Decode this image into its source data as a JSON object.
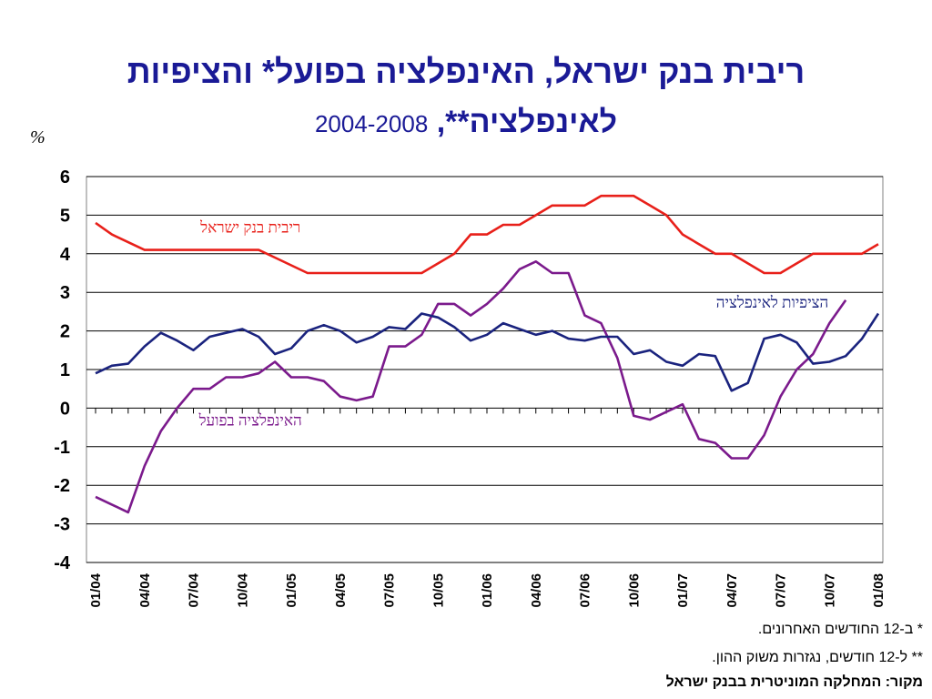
{
  "title": {
    "line1": "ריבית בנק ישראל, האינפלציה בפועל* והציפיות",
    "line2": "לאינפלציה**,",
    "years": "2004-2008"
  },
  "unit_label": "%",
  "notes": {
    "note1": "* ב-12 החודשים האחרונים.",
    "note2": "** ל-12 חודשים, נגזרות משוק ההון.",
    "source": "מקור: המחלקה המוניטרית בבנק ישראל"
  },
  "colors": {
    "rate": "#e8201a",
    "actual": "#7b1a8c",
    "expected": "#1a237e",
    "grid": "#000000"
  },
  "chart_data": {
    "type": "line",
    "ylim": [
      -4,
      6
    ],
    "yticks": [
      6,
      5,
      4,
      3,
      2,
      1,
      0,
      -1,
      -2,
      -3,
      -4
    ],
    "x_tick_labels": [
      "01/04",
      "04/04",
      "07/04",
      "10/04",
      "01/05",
      "04/05",
      "07/05",
      "10/05",
      "01/06",
      "04/06",
      "07/06",
      "10/06",
      "01/07",
      "04/07",
      "07/07",
      "10/07",
      "01/08"
    ],
    "grid": "horizontal",
    "series": [
      {
        "name": "ריבית בנק ישראל",
        "color_key": "rate",
        "values": [
          4.8,
          4.5,
          4.3,
          4.1,
          4.1,
          4.1,
          4.1,
          4.1,
          4.1,
          4.1,
          4.1,
          3.9,
          3.7,
          3.5,
          3.5,
          3.5,
          3.5,
          3.5,
          3.5,
          3.5,
          3.5,
          3.75,
          4.0,
          4.5,
          4.5,
          4.75,
          4.75,
          5.0,
          5.25,
          5.25,
          5.25,
          5.5,
          5.5,
          5.5,
          5.25,
          5.0,
          4.5,
          4.25,
          4.0,
          4.0,
          3.75,
          3.5,
          3.5,
          3.75,
          4.0,
          4.0,
          4.0,
          4.0,
          4.25
        ]
      },
      {
        "name": "האינפלציה בפועל",
        "color_key": "actual",
        "values": [
          -2.3,
          -2.5,
          -2.7,
          -1.5,
          -0.6,
          0.0,
          0.5,
          0.5,
          0.8,
          0.8,
          0.9,
          1.2,
          0.8,
          0.8,
          0.7,
          0.3,
          0.2,
          0.3,
          1.6,
          1.6,
          1.9,
          2.7,
          2.7,
          2.4,
          2.7,
          3.1,
          3.6,
          3.8,
          3.5,
          3.5,
          2.4,
          2.2,
          1.3,
          -0.2,
          -0.3,
          -0.1,
          0.1,
          -0.8,
          -0.9,
          -1.3,
          -1.3,
          -0.7,
          0.3,
          1.0,
          1.4,
          2.2,
          2.8
        ]
      },
      {
        "name": "הציפיות לאינפלציה",
        "color_key": "expected",
        "values": [
          0.9,
          1.1,
          1.15,
          1.6,
          1.95,
          1.75,
          1.5,
          1.85,
          1.95,
          2.05,
          1.85,
          1.4,
          1.55,
          2.0,
          2.15,
          2.0,
          1.7,
          1.85,
          2.1,
          2.05,
          2.45,
          2.35,
          2.1,
          1.75,
          1.9,
          2.2,
          2.05,
          1.9,
          2.0,
          1.8,
          1.75,
          1.85,
          1.85,
          1.4,
          1.5,
          1.2,
          1.1,
          1.4,
          1.35,
          0.45,
          0.65,
          1.8,
          1.9,
          1.7,
          1.15,
          1.2,
          1.35,
          1.8,
          2.45
        ]
      }
    ],
    "annotations": [
      {
        "series": 0,
        "text": "ריבית בנק ישראל",
        "at_x": 9.5,
        "at_y": 4.55
      },
      {
        "series": 2,
        "text": "הציפיות לאינפלציה",
        "at_x": 41.5,
        "at_y": 2.6
      },
      {
        "series": 1,
        "text": "האינפלציה בפועל",
        "at_x": 9.5,
        "at_y": -0.45
      }
    ]
  }
}
